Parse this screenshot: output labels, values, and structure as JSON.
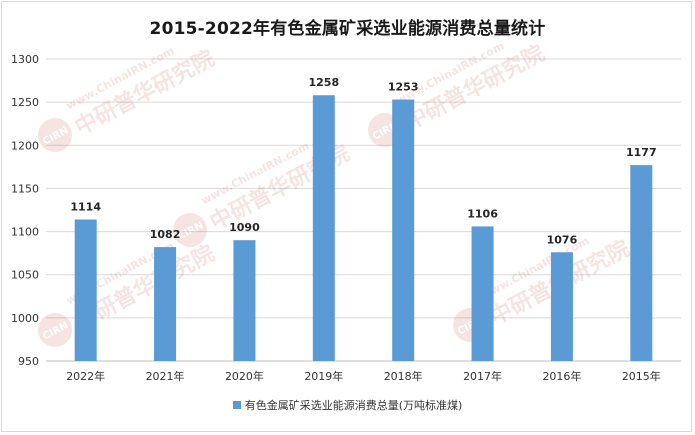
{
  "chart_data": {
    "type": "bar",
    "title": "2015-2022年有色金属矿采选业能源消费总量统计",
    "categories": [
      "2022年",
      "2021年",
      "2020年",
      "2019年",
      "2018年",
      "2017年",
      "2016年",
      "2015年"
    ],
    "series": [
      {
        "name": "有色金属矿采选业能源消费总量(万吨标准煤)",
        "values": [
          1114,
          1082,
          1090,
          1258,
          1253,
          1106,
          1076,
          1177
        ],
        "color": "#5b9bd5"
      }
    ],
    "data_labels": [
      "1114",
      "1082",
      "1090",
      "1258",
      "1253",
      "1106",
      "1076",
      "1177"
    ],
    "y_ticks": [
      "950",
      "1000",
      "1050",
      "1100",
      "1150",
      "1200",
      "1250",
      "1300"
    ],
    "ylim": [
      950,
      1300
    ],
    "grid": true,
    "legend_position": "bottom"
  },
  "watermark": {
    "logo_text": "CIRN",
    "cn_text": "中研普华研究院",
    "url_text": "www.ChinaIRN.com"
  }
}
